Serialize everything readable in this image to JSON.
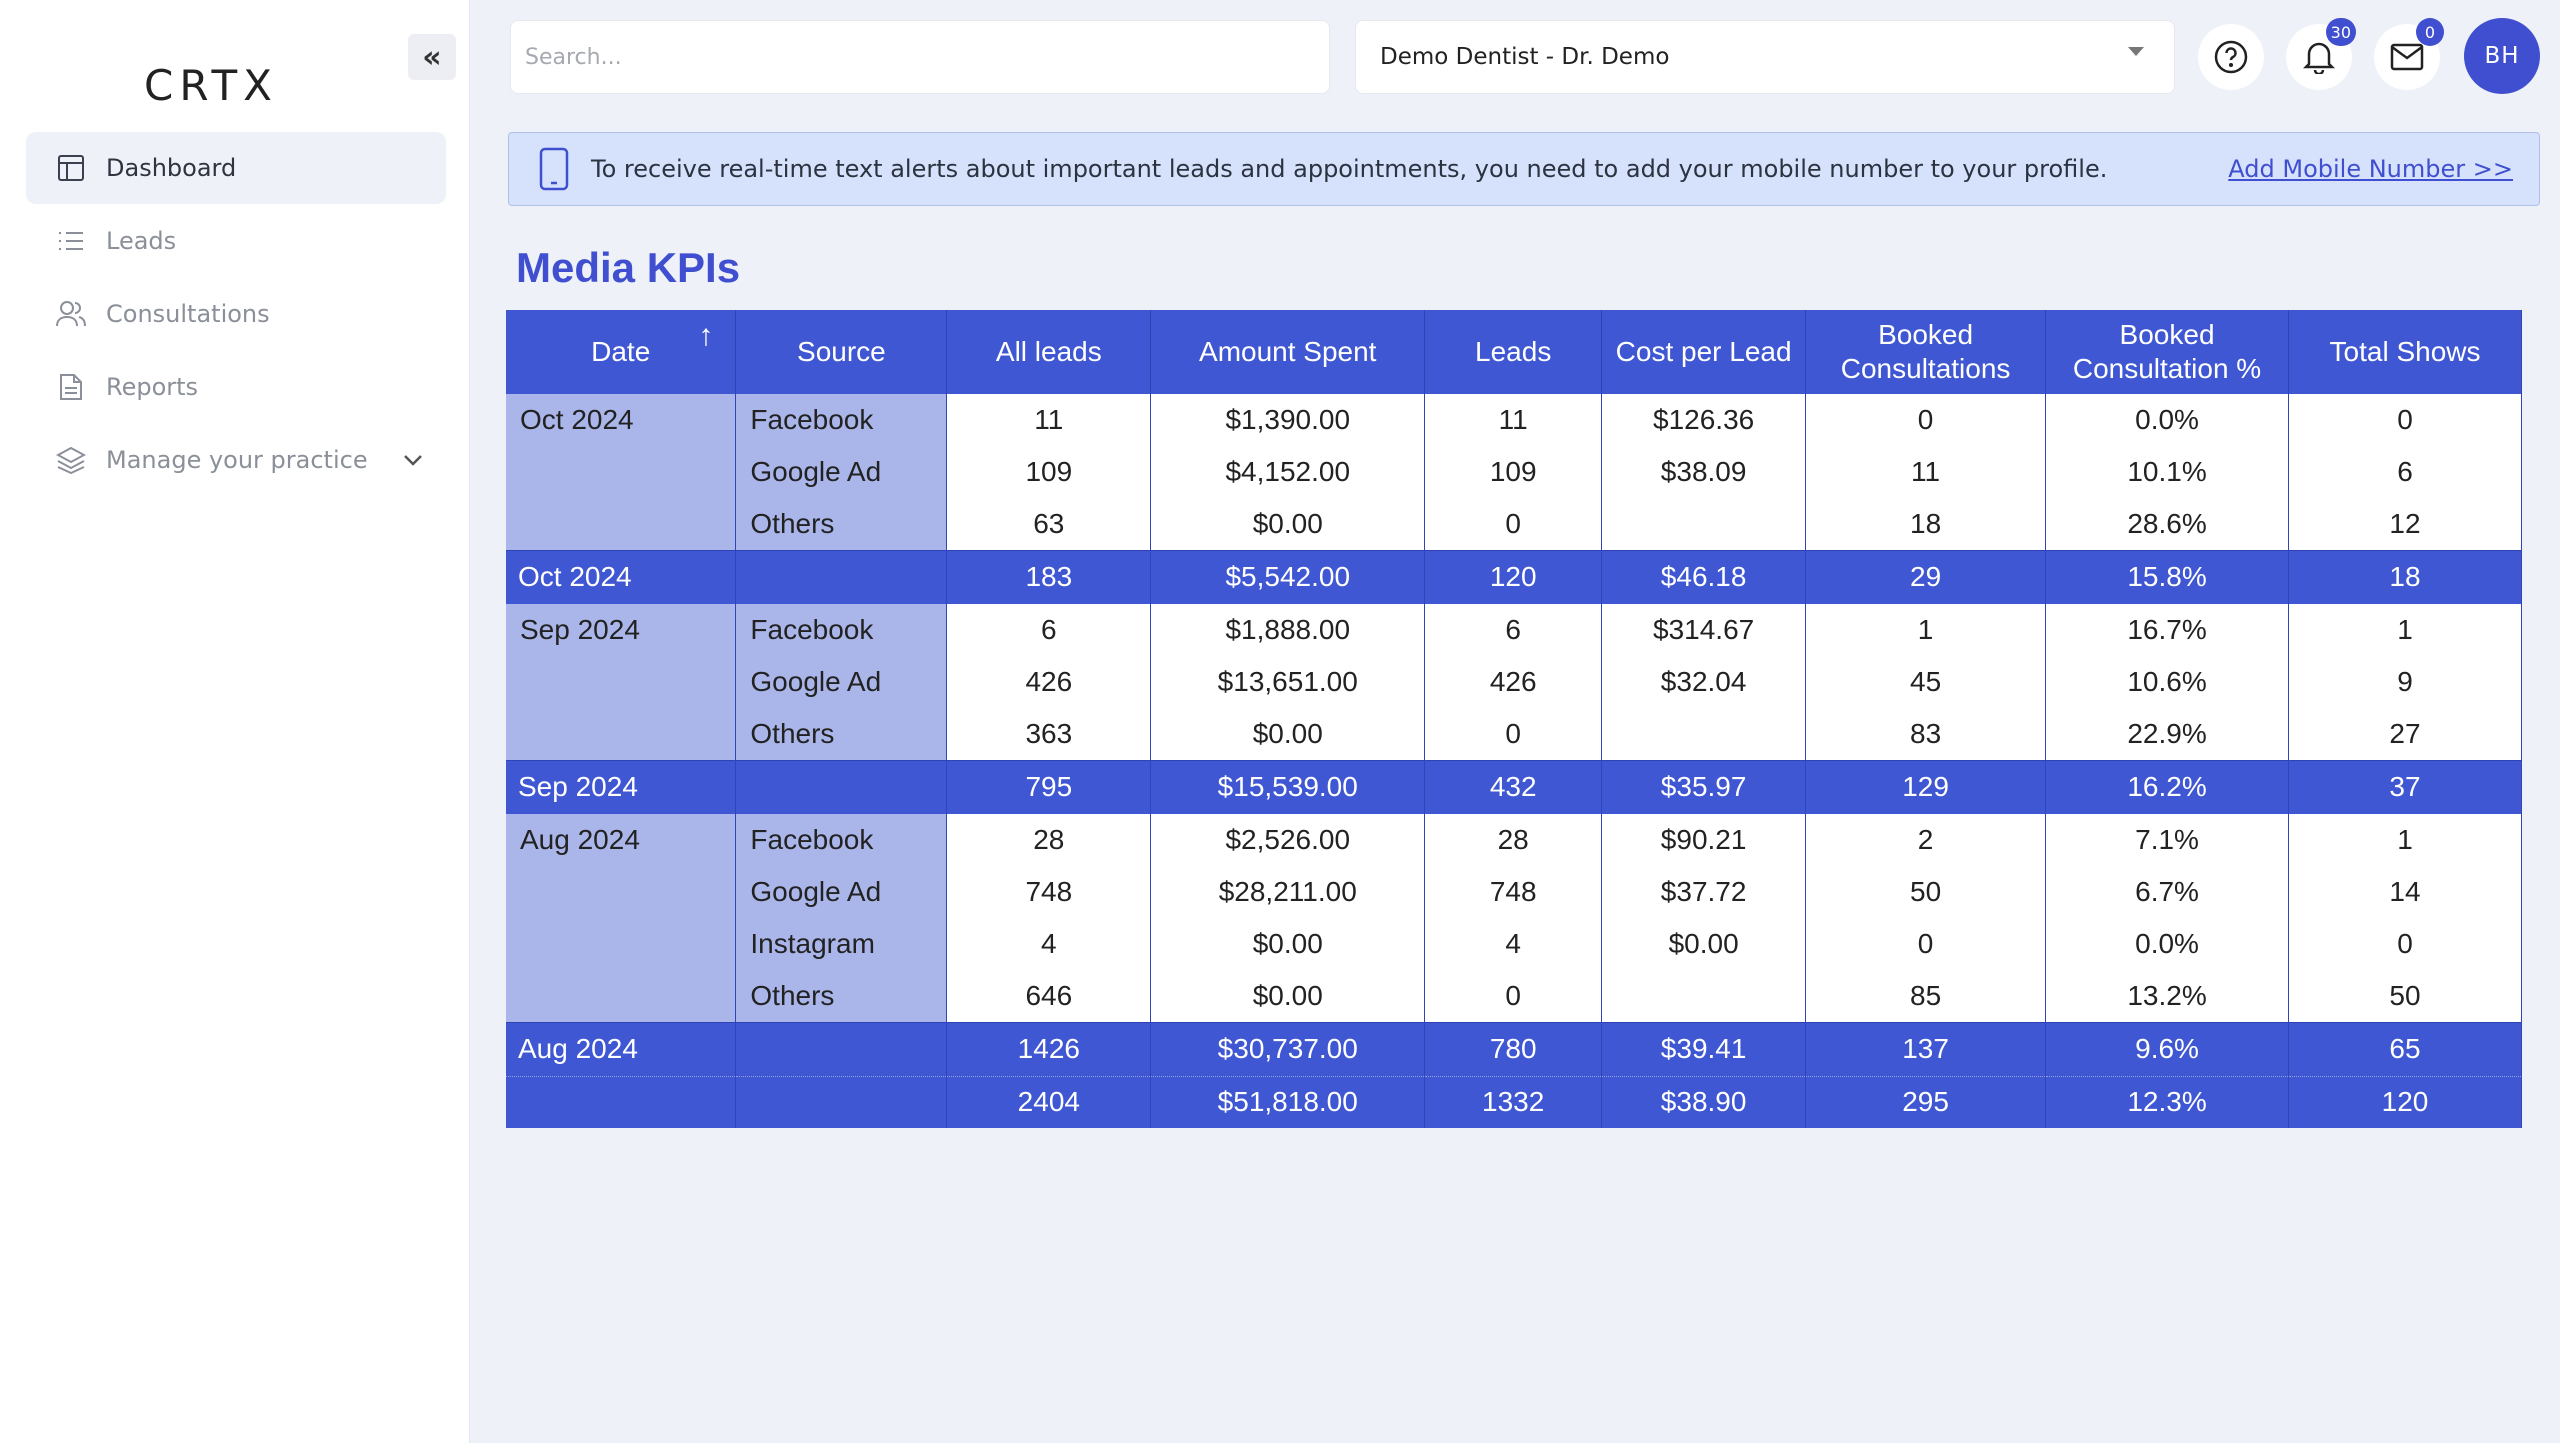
{
  "sidebar": {
    "logo": "CRTX",
    "items": [
      {
        "label": "Dashboard",
        "icon": "dashboard-icon",
        "active": true
      },
      {
        "label": "Leads",
        "icon": "list-icon"
      },
      {
        "label": "Consultations",
        "icon": "users-icon"
      },
      {
        "label": "Reports",
        "icon": "document-icon"
      },
      {
        "label": "Manage your practice",
        "icon": "layers-icon"
      }
    ]
  },
  "header": {
    "search_placeholder": "Search...",
    "practice": "Demo Dentist - Dr. Demo",
    "notifications_count": "30",
    "messages_count": "0",
    "avatar_initials": "BH"
  },
  "alert": {
    "text": "To receive real-time text alerts about important leads and appointments, you need to add your mobile number to your profile.",
    "link": "Add Mobile Number >>"
  },
  "main": {
    "title": "Media KPIs",
    "columns": [
      "Date",
      "Source",
      "All leads",
      "Amount Spent",
      "Leads",
      "Cost per Lead",
      "Booked Consultations",
      "Booked Consultation %",
      "Total Shows"
    ],
    "rows": [
      {
        "type": "detail",
        "date": "Oct 2024",
        "source": "Facebook",
        "all_leads": "11",
        "amount": "$1,390.00",
        "leads": "11",
        "cpl": "$126.36",
        "booked": "0",
        "pct": "0.0%",
        "shows": "0"
      },
      {
        "type": "detail",
        "date": "",
        "source": "Google Ad",
        "all_leads": "109",
        "amount": "$4,152.00",
        "leads": "109",
        "cpl": "$38.09",
        "booked": "11",
        "pct": "10.1%",
        "shows": "6"
      },
      {
        "type": "detail",
        "date": "",
        "source": "Others",
        "all_leads": "63",
        "amount": "$0.00",
        "leads": "0",
        "cpl": "",
        "booked": "18",
        "pct": "28.6%",
        "shows": "12"
      },
      {
        "type": "sum",
        "date": "Oct 2024",
        "source": "",
        "all_leads": "183",
        "amount": "$5,542.00",
        "leads": "120",
        "cpl": "$46.18",
        "booked": "29",
        "pct": "15.8%",
        "shows": "18"
      },
      {
        "type": "detail",
        "date": "Sep 2024",
        "source": "Facebook",
        "all_leads": "6",
        "amount": "$1,888.00",
        "leads": "6",
        "cpl": "$314.67",
        "booked": "1",
        "pct": "16.7%",
        "shows": "1"
      },
      {
        "type": "detail",
        "date": "",
        "source": "Google Ad",
        "all_leads": "426",
        "amount": "$13,651.00",
        "leads": "426",
        "cpl": "$32.04",
        "booked": "45",
        "pct": "10.6%",
        "shows": "9"
      },
      {
        "type": "detail",
        "date": "",
        "source": "Others",
        "all_leads": "363",
        "amount": "$0.00",
        "leads": "0",
        "cpl": "",
        "booked": "83",
        "pct": "22.9%",
        "shows": "27"
      },
      {
        "type": "sum",
        "date": "Sep 2024",
        "source": "",
        "all_leads": "795",
        "amount": "$15,539.00",
        "leads": "432",
        "cpl": "$35.97",
        "booked": "129",
        "pct": "16.2%",
        "shows": "37"
      },
      {
        "type": "detail",
        "date": "Aug 2024",
        "source": "Facebook",
        "all_leads": "28",
        "amount": "$2,526.00",
        "leads": "28",
        "cpl": "$90.21",
        "booked": "2",
        "pct": "7.1%",
        "shows": "1"
      },
      {
        "type": "detail",
        "date": "",
        "source": "Google Ad",
        "all_leads": "748",
        "amount": "$28,211.00",
        "leads": "748",
        "cpl": "$37.72",
        "booked": "50",
        "pct": "6.7%",
        "shows": "14"
      },
      {
        "type": "detail",
        "date": "",
        "source": "Instagram",
        "all_leads": "4",
        "amount": "$0.00",
        "leads": "4",
        "cpl": "$0.00",
        "booked": "0",
        "pct": "0.0%",
        "shows": "0"
      },
      {
        "type": "detail",
        "date": "",
        "source": "Others",
        "all_leads": "646",
        "amount": "$0.00",
        "leads": "0",
        "cpl": "",
        "booked": "85",
        "pct": "13.2%",
        "shows": "50"
      },
      {
        "type": "sum",
        "date": "Aug 2024",
        "source": "",
        "all_leads": "1426",
        "amount": "$30,737.00",
        "leads": "780",
        "cpl": "$39.41",
        "booked": "137",
        "pct": "9.6%",
        "shows": "65"
      },
      {
        "type": "total",
        "date": "",
        "source": "",
        "all_leads": "2404",
        "amount": "$51,818.00",
        "leads": "1332",
        "cpl": "$38.90",
        "booked": "295",
        "pct": "12.3%",
        "shows": "120"
      }
    ]
  }
}
